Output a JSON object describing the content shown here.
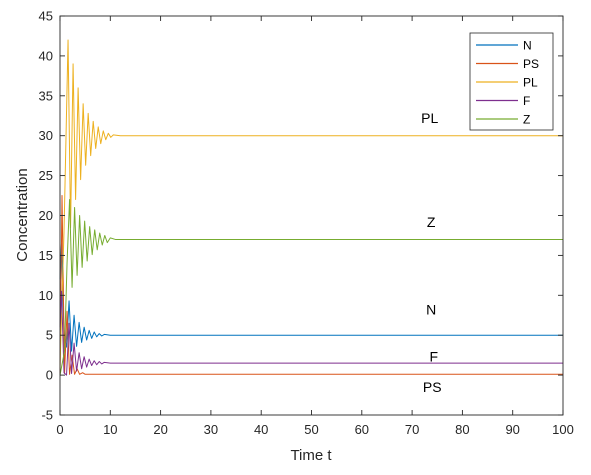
{
  "chart_data": {
    "type": "line",
    "title": "",
    "xlabel": "Time t",
    "ylabel": "Concentration",
    "xlim": [
      0,
      100
    ],
    "ylim": [
      -5,
      45
    ],
    "xticks": [
      "0",
      "10",
      "20",
      "30",
      "40",
      "50",
      "60",
      "70",
      "80",
      "90",
      "100"
    ],
    "yticks": [
      "-5",
      "0",
      "5",
      "10",
      "15",
      "20",
      "25",
      "30",
      "35",
      "40",
      "45"
    ],
    "grid": false,
    "legend_position": "top-right",
    "series": [
      {
        "name": "N",
        "color": "#0072BD",
        "x": [
          0,
          0.3,
          0.8,
          1.3,
          1.8,
          2.3,
          2.8,
          3.3,
          3.8,
          4.3,
          4.8,
          5.3,
          5.8,
          6.3,
          6.8,
          7.3,
          7.8,
          8.3,
          8.8,
          10,
          15,
          100
        ],
        "y": [
          12,
          16.5,
          5.0,
          3.5,
          9.3,
          3.0,
          7.5,
          3.6,
          6.6,
          4.1,
          6.0,
          4.4,
          5.6,
          4.6,
          5.4,
          4.8,
          5.2,
          4.9,
          5.1,
          5.0,
          5.0,
          5.0
        ]
      },
      {
        "name": "PS",
        "color": "#D95319",
        "x": [
          0,
          0.4,
          0.9,
          1.4,
          1.9,
          2.4,
          2.9,
          3.4,
          3.9,
          4.5,
          5.0,
          6.0,
          100
        ],
        "y": [
          0.2,
          22.5,
          0.2,
          8.0,
          0.1,
          2.5,
          0.1,
          0.8,
          0.1,
          0.3,
          0.1,
          0.1,
          0.1
        ]
      },
      {
        "name": "PL",
        "color": "#EDB120",
        "x": [
          0,
          0.8,
          1.6,
          2.1,
          2.6,
          3.1,
          3.6,
          4.1,
          4.6,
          5.1,
          5.6,
          6.1,
          6.6,
          7.1,
          7.6,
          8.1,
          8.6,
          9.1,
          9.6,
          10.1,
          10.6,
          12,
          100
        ],
        "y": [
          1,
          18,
          42,
          18.5,
          39,
          22,
          36,
          24.5,
          34,
          26.3,
          32.8,
          27.5,
          31.8,
          28.4,
          31.1,
          29.0,
          30.6,
          29.5,
          30.3,
          29.8,
          30.1,
          30,
          30
        ]
      },
      {
        "name": "F",
        "color": "#7E2F8E",
        "x": [
          0,
          0.3,
          0.8,
          1.3,
          1.8,
          2.3,
          2.8,
          3.3,
          3.8,
          4.3,
          4.8,
          5.3,
          5.8,
          6.3,
          6.8,
          7.3,
          7.8,
          8.3,
          8.8,
          10,
          15,
          100
        ],
        "y": [
          6,
          10.5,
          0.3,
          0.0,
          6.5,
          0.2,
          4.0,
          0.5,
          2.8,
          0.8,
          2.3,
          1.0,
          2.0,
          1.2,
          1.8,
          1.3,
          1.7,
          1.4,
          1.6,
          1.5,
          1.5,
          1.5
        ]
      },
      {
        "name": "Z",
        "color": "#77AC30",
        "x": [
          0,
          0.9,
          1.4,
          1.9,
          2.4,
          2.9,
          3.4,
          3.9,
          4.4,
          4.9,
          5.4,
          5.9,
          6.4,
          6.9,
          7.4,
          7.9,
          8.4,
          8.9,
          9.4,
          10.0,
          11,
          100
        ],
        "y": [
          0,
          3.0,
          14.0,
          22.0,
          11.0,
          21.0,
          12.5,
          20.0,
          13.5,
          19.3,
          14.3,
          18.6,
          15.1,
          18.2,
          15.7,
          17.8,
          16.3,
          17.5,
          16.6,
          17.2,
          17,
          17
        ]
      }
    ],
    "annotations": [
      {
        "text": "PL",
        "x": 73.5,
        "y": 32.2
      },
      {
        "text": "Z",
        "x": 73.8,
        "y": 19.2
      },
      {
        "text": "N",
        "x": 73.8,
        "y": 8.2
      },
      {
        "text": "F",
        "x": 74.3,
        "y": 2.3
      },
      {
        "text": "PS",
        "x": 74.0,
        "y": -1.5
      }
    ]
  }
}
